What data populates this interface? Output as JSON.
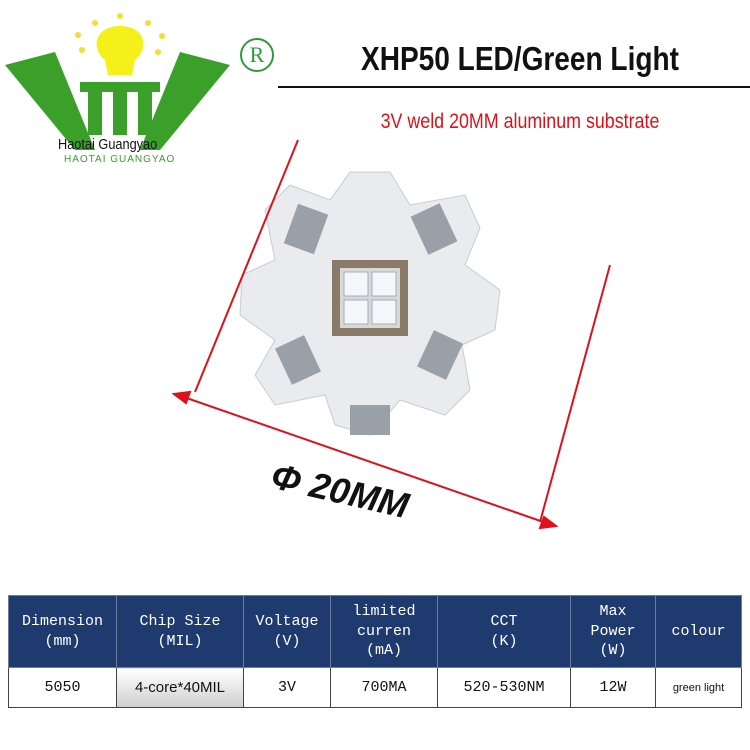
{
  "brand": {
    "name": "Haotai Guangyao",
    "name_caps": "HAOTAI GUANGYAO",
    "registered": "R",
    "colors": {
      "green": "#2f9a3a",
      "yellow": "#f5f01a"
    }
  },
  "header": {
    "title": "XHP50 LED/Green Light",
    "subtitle": "3V weld 20MM aluminum substrate"
  },
  "diagram": {
    "dimension_label": "Φ 20MM",
    "arrow_color": "#e0101a"
  },
  "specs": {
    "headers": [
      [
        "Dimension",
        "(mm)"
      ],
      [
        "Chip Size",
        "(MIL)"
      ],
      [
        "Voltage",
        "(V)"
      ],
      [
        "limited",
        "curren",
        "(mA)"
      ],
      [
        "CCT",
        "(K)"
      ],
      [
        "Max",
        "Power",
        "(W)"
      ],
      [
        "colour"
      ]
    ],
    "values": [
      "5050",
      "4-core*40MIL",
      "3V",
      "700MA",
      "520-530NM",
      "12W",
      "green light"
    ],
    "header_color": "#1f3a6e"
  }
}
